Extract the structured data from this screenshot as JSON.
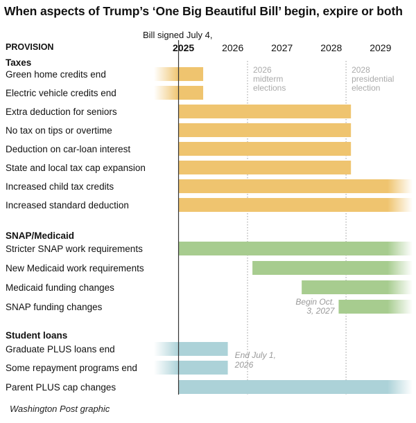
{
  "title": "When aspects of Trump’s ‘One Big Beautiful Bill’ begin, expire or both",
  "credit": "Washington Post graphic",
  "chart_data": {
    "type": "timeline",
    "column_header": "PROVISION",
    "signing_note": "Bill signed July 4,",
    "x_domain": [
      2024.5,
      2029.75
    ],
    "years": [
      {
        "label": "2025",
        "bold": true
      },
      {
        "label": "2026",
        "bold": false
      },
      {
        "label": "2027",
        "bold": false
      },
      {
        "label": "2028",
        "bold": false
      },
      {
        "label": "2029",
        "bold": false
      }
    ],
    "signing_date": 2025.0,
    "reference_lines": [
      {
        "date": 2026.4,
        "lines": [
          "2026",
          "midterm",
          "elections"
        ]
      },
      {
        "date": 2028.4,
        "lines": [
          "2028",
          "presidential",
          "election"
        ]
      }
    ],
    "colors": {
      "Taxes": "#efc46f",
      "SNAP/Medicaid": "#a7cc8f",
      "Student loans": "#acd2d8"
    },
    "groups": [
      {
        "name": "Taxes",
        "items": [
          {
            "label": "Green home credits end",
            "start": null,
            "end": 2025.5,
            "fade": "left"
          },
          {
            "label": "Electric vehicle credits end",
            "start": null,
            "end": 2025.5,
            "fade": "left"
          },
          {
            "label": "Extra deduction for seniors",
            "start": 2025.0,
            "end": 2028.5,
            "fade": "none"
          },
          {
            "label": "No tax on tips or overtime",
            "start": 2025.0,
            "end": 2028.5,
            "fade": "none"
          },
          {
            "label": "Deduction on car-loan interest",
            "start": 2025.0,
            "end": 2028.5,
            "fade": "none"
          },
          {
            "label": "State and local tax cap expansion",
            "start": 2025.0,
            "end": 2028.5,
            "fade": "none"
          },
          {
            "label": "Increased child tax credits",
            "start": 2025.0,
            "end": null,
            "fade": "right"
          },
          {
            "label": "Increased standard deduction",
            "start": 2025.0,
            "end": null,
            "fade": "right"
          }
        ]
      },
      {
        "name": "SNAP/Medicaid",
        "items": [
          {
            "label": "Stricter SNAP work requirements",
            "start": 2025.0,
            "end": null,
            "fade": "right"
          },
          {
            "label": "New Medicaid work requirements",
            "start": 2026.5,
            "end": null,
            "fade": "right"
          },
          {
            "label": "Medicaid funding changes",
            "start": 2027.5,
            "end": null,
            "fade": "right"
          },
          {
            "label": "SNAP funding changes",
            "start": 2028.25,
            "end": null,
            "fade": "right",
            "note": [
              "Begin Oct.",
              "3, 2027"
            ]
          }
        ]
      },
      {
        "name": "Student loans",
        "items": [
          {
            "label": "Graduate PLUS loans end",
            "start": null,
            "end": 2026.0,
            "fade": "left",
            "note": [
              "End July 1,",
              "2026"
            ]
          },
          {
            "label": "Some repayment programs end",
            "start": null,
            "end": 2026.0,
            "fade": "left"
          },
          {
            "label": "Parent PLUS cap changes",
            "start": 2025.0,
            "end": null,
            "fade": "right"
          }
        ]
      }
    ]
  }
}
